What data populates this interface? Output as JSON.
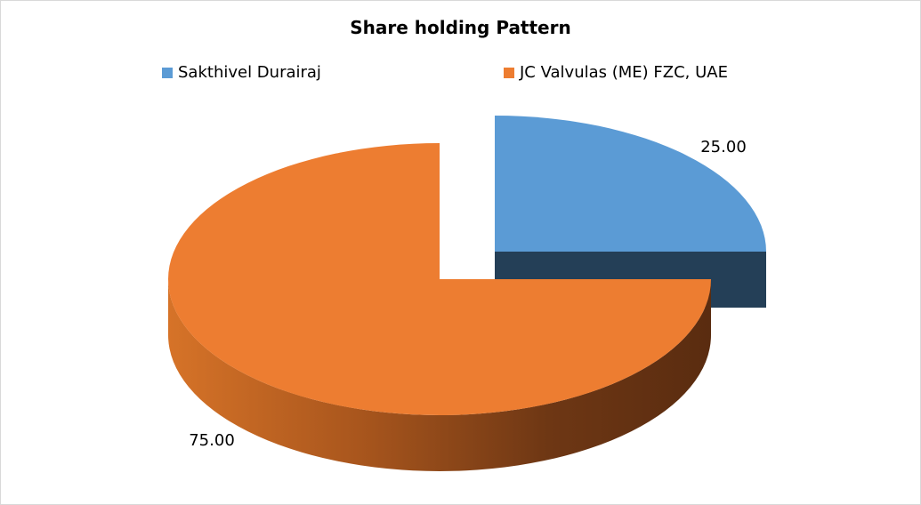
{
  "chart_data": {
    "type": "pie",
    "title": "Share holding Pattern",
    "categories": [
      "Sakthivel Durairaj",
      "JC Valvulas (ME) FZC, UAE"
    ],
    "values": [
      25.0,
      75.0
    ],
    "labels": [
      "25.00",
      "75.00"
    ],
    "colors": [
      "#5B9BD5",
      "#ED7D31"
    ],
    "side_colors": [
      "#243F57",
      "#7A3F14"
    ],
    "legend_position": "top",
    "style": "3d-exploded"
  }
}
